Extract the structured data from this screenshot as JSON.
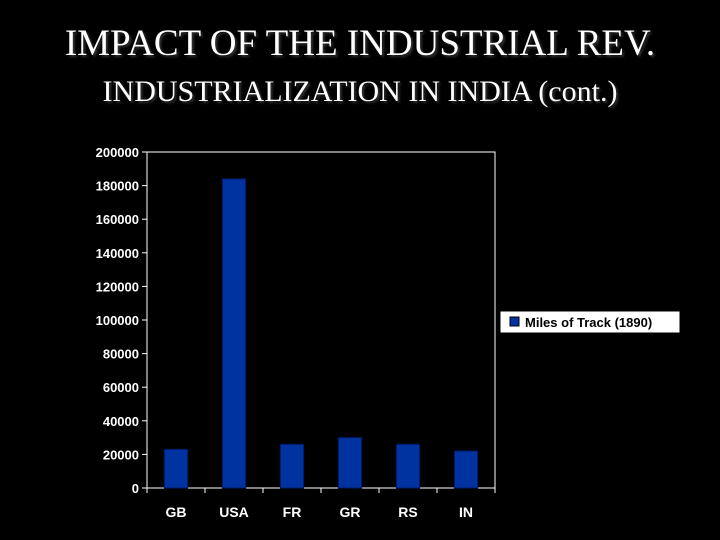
{
  "slide": {
    "title": "IMPACT OF THE INDUSTRIAL REV.",
    "subtitle": "INDUSTRIALIZATION IN INDIA (cont.)"
  },
  "colors": {
    "background": "#000000",
    "bar_fill": "#0033a0",
    "bar_stroke": "#001a66",
    "text": "#ffffff",
    "axis": "#ffffff"
  },
  "chart_data": {
    "type": "bar",
    "categories": [
      "GB",
      "USA",
      "FR",
      "GR",
      "RS",
      "IN"
    ],
    "series": [
      {
        "name": "Miles of Track (1890)",
        "values": [
          23000,
          184000,
          26000,
          30000,
          26000,
          22000
        ]
      }
    ],
    "ylim": [
      0,
      200000
    ],
    "yticks": [
      "0",
      "20000",
      "40000",
      "60000",
      "80000",
      "100000",
      "120000",
      "140000",
      "160000",
      "180000",
      "200000"
    ],
    "grid": false,
    "legend": "right"
  }
}
